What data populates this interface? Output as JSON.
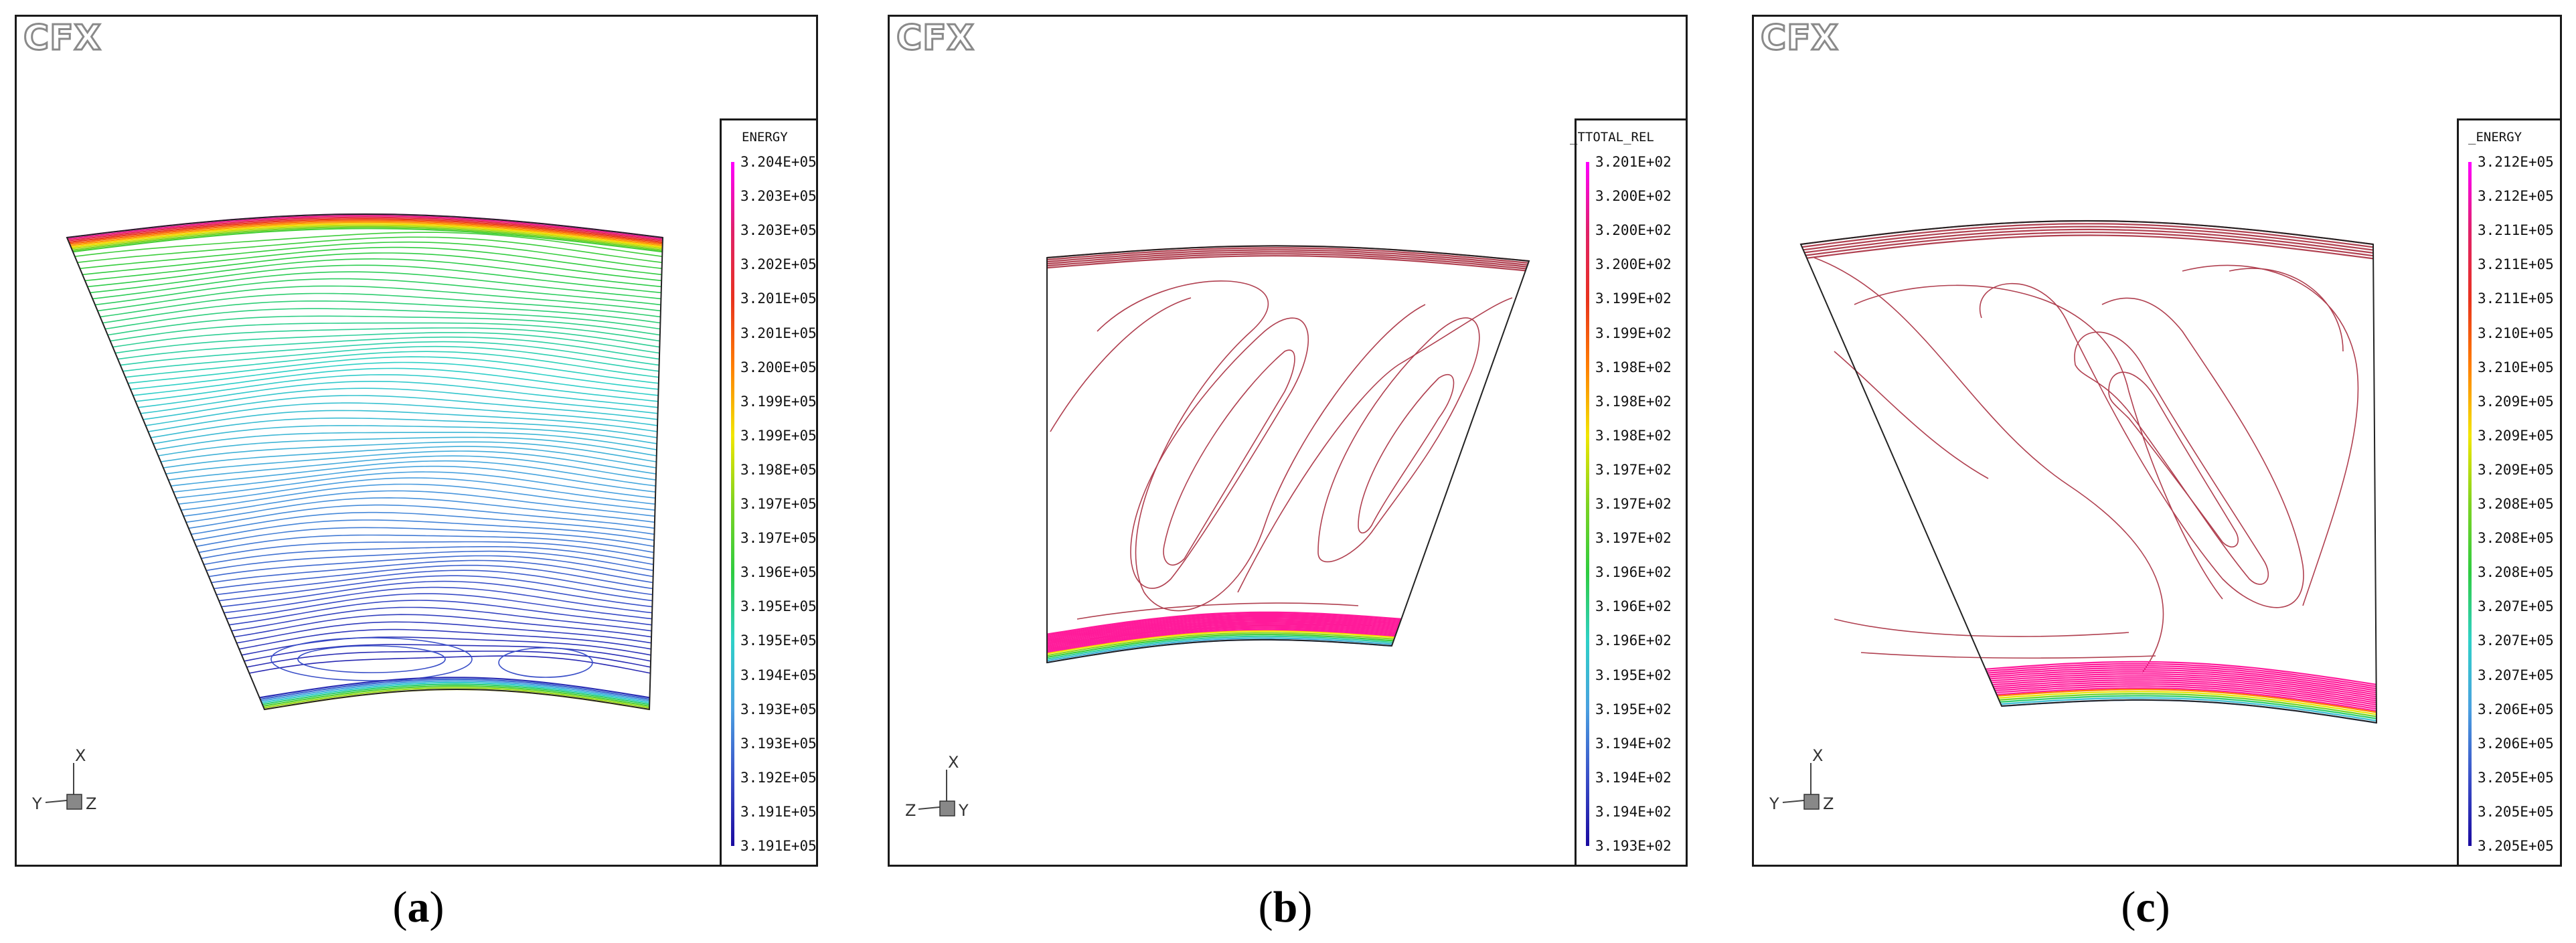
{
  "chart_data": [
    {
      "type": "contour",
      "brand": "CFX",
      "caption_letter": "a",
      "legend_title": "ENERGY",
      "levels": [
        "3.204E+05",
        "3.203E+05",
        "3.203E+05",
        "3.202E+05",
        "3.201E+05",
        "3.201E+05",
        "3.200E+05",
        "3.199E+05",
        "3.199E+05",
        "3.198E+05",
        "3.197E+05",
        "3.197E+05",
        "3.196E+05",
        "3.195E+05",
        "3.195E+05",
        "3.194E+05",
        "3.193E+05",
        "3.193E+05",
        "3.192E+05",
        "3.191E+05",
        "3.191E+05"
      ],
      "axis_labels": [
        "X",
        "Y",
        "Z"
      ]
    },
    {
      "type": "contour",
      "brand": "CFX",
      "caption_letter": "b",
      "legend_title": "_TTOTAL_REL",
      "levels": [
        "3.201E+02",
        "3.200E+02",
        "3.200E+02",
        "3.200E+02",
        "3.199E+02",
        "3.199E+02",
        "3.198E+02",
        "3.198E+02",
        "3.198E+02",
        "3.197E+02",
        "3.197E+02",
        "3.197E+02",
        "3.196E+02",
        "3.196E+02",
        "3.196E+02",
        "3.195E+02",
        "3.195E+02",
        "3.194E+02",
        "3.194E+02",
        "3.194E+02",
        "3.193E+02"
      ],
      "axis_labels": [
        "X",
        "Z",
        "Y"
      ]
    },
    {
      "type": "contour",
      "brand": "CFX",
      "caption_letter": "c",
      "legend_title": "_ENERGY",
      "levels": [
        "3.212E+05",
        "3.212E+05",
        "3.211E+05",
        "3.211E+05",
        "3.211E+05",
        "3.210E+05",
        "3.210E+05",
        "3.209E+05",
        "3.209E+05",
        "3.209E+05",
        "3.208E+05",
        "3.208E+05",
        "3.208E+05",
        "3.207E+05",
        "3.207E+05",
        "3.207E+05",
        "3.206E+05",
        "3.206E+05",
        "3.205E+05",
        "3.205E+05",
        "3.205E+05"
      ],
      "axis_labels": [
        "X",
        "Y",
        "Z"
      ]
    }
  ],
  "captions": [
    {
      "open": "(",
      "letter": "a",
      "close": ")"
    },
    {
      "open": "(",
      "letter": "b",
      "close": ")"
    },
    {
      "open": "(",
      "letter": "c",
      "close": ")"
    }
  ],
  "colors": {
    "colormap": [
      "#ff00ff",
      "#e0206a",
      "#e8321e",
      "#ff7f00",
      "#f2e600",
      "#7ed321",
      "#2ecc40",
      "#2ed0c8",
      "#4aa0e0",
      "#3a4fc8",
      "#1a0aa0"
    ],
    "contour_b_c": "#b04050",
    "frame": "#1a1a1a"
  }
}
